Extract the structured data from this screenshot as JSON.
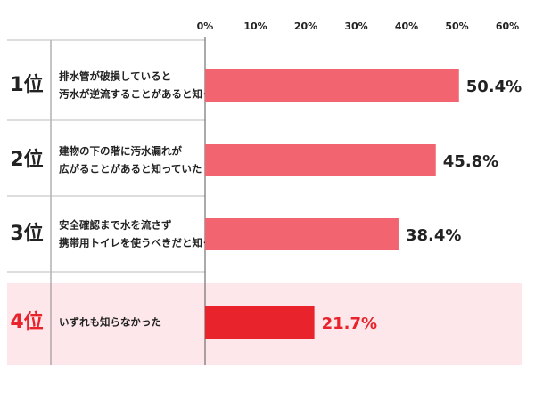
{
  "chart_data": {
    "type": "bar",
    "orientation": "horizontal",
    "ranks": [
      "1位",
      "2位",
      "3位",
      "4位"
    ],
    "categories": [
      [
        "排水管が破損していると",
        "汚水が逆流することがあると知っていた"
      ],
      [
        "建物の下の階に汚水漏れが",
        "広がることがあると知っていた"
      ],
      [
        "安全確認まで水を流さず",
        "携帯用トイレを使うべきだと知っていた"
      ],
      [
        "いずれも知らなかった"
      ]
    ],
    "values": [
      50.4,
      45.8,
      38.4,
      21.7
    ],
    "value_labels": [
      "50.4%",
      "45.8%",
      "38.4%",
      "21.7%"
    ],
    "colors": [
      "#f2646f",
      "#f2646f",
      "#f2646f",
      "#e8232b"
    ],
    "highlight": [
      false,
      false,
      false,
      true
    ],
    "highlight_color": "#e8232b",
    "xlim": [
      0,
      60
    ],
    "xticks": [
      {
        "value": 0,
        "label": "0%"
      },
      {
        "value": 10,
        "label": "10%"
      },
      {
        "value": 20,
        "label": "20%"
      },
      {
        "value": 30,
        "label": "30%"
      },
      {
        "value": 40,
        "label": "40%"
      },
      {
        "value": 50,
        "label": "50%"
      },
      {
        "value": 60,
        "label": "60%"
      }
    ]
  }
}
